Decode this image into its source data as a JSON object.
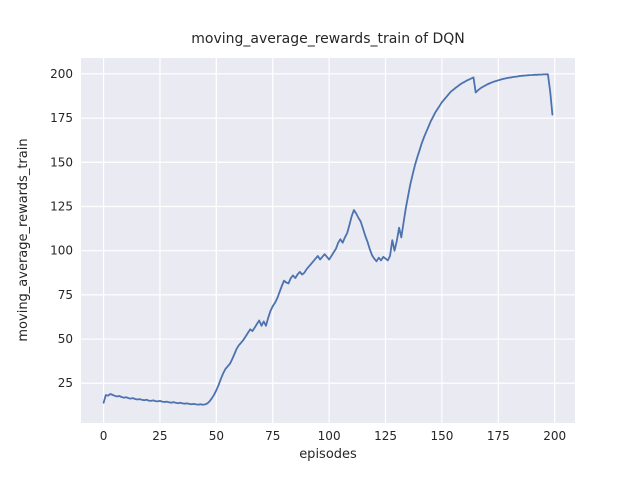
{
  "colors": {
    "figure_bg": "#ffffff",
    "axes_bg": "#eaeaf2",
    "grid": "#ffffff",
    "line": "#4c72b0",
    "text": "#262626"
  },
  "chart_data": {
    "type": "line",
    "title": "moving_average_rewards_train of DQN",
    "xlabel": "episodes",
    "ylabel": "moving_average_rewards_train",
    "x_ticks": [
      0,
      25,
      50,
      75,
      100,
      125,
      150,
      175,
      200
    ],
    "y_ticks": [
      25,
      50,
      75,
      100,
      125,
      150,
      175,
      200
    ],
    "xlim": [
      -10,
      209
    ],
    "ylim": [
      2.5,
      209
    ],
    "grid": true,
    "legend": null,
    "series": [
      {
        "name": "moving_average_rewards_train",
        "color": "#4c72b0",
        "points": [
          [
            0,
            14
          ],
          [
            1,
            18.3
          ],
          [
            2,
            18
          ],
          [
            3,
            18.9
          ],
          [
            4,
            18.4
          ],
          [
            5,
            17.9
          ],
          [
            6,
            17.5
          ],
          [
            7,
            17.8
          ],
          [
            8,
            17.2
          ],
          [
            9,
            16.8
          ],
          [
            10,
            17.1
          ],
          [
            11,
            16.6
          ],
          [
            12,
            16.3
          ],
          [
            13,
            16.6
          ],
          [
            14,
            16.1
          ],
          [
            15,
            15.8
          ],
          [
            16,
            16
          ],
          [
            17,
            15.6
          ],
          [
            18,
            15.4
          ],
          [
            19,
            15.7
          ],
          [
            20,
            15.2
          ],
          [
            21,
            15
          ],
          [
            22,
            15.3
          ],
          [
            23,
            14.9
          ],
          [
            24,
            14.7
          ],
          [
            25,
            15
          ],
          [
            26,
            14.6
          ],
          [
            27,
            14.4
          ],
          [
            28,
            14.6
          ],
          [
            29,
            14.2
          ],
          [
            30,
            14
          ],
          [
            31,
            14.3
          ],
          [
            32,
            13.9
          ],
          [
            33,
            13.7
          ],
          [
            34,
            14
          ],
          [
            35,
            13.6
          ],
          [
            36,
            13.4
          ],
          [
            37,
            13.6
          ],
          [
            38,
            13.3
          ],
          [
            39,
            13.1
          ],
          [
            40,
            13.3
          ],
          [
            41,
            13
          ],
          [
            42,
            12.9
          ],
          [
            43,
            13.1
          ],
          [
            44,
            12.8
          ],
          [
            45,
            13
          ],
          [
            46,
            13.6
          ],
          [
            47,
            14.8
          ],
          [
            48,
            16.5
          ],
          [
            49,
            18.5
          ],
          [
            50,
            21
          ],
          [
            51,
            24
          ],
          [
            52,
            27.5
          ],
          [
            53,
            30.5
          ],
          [
            54,
            33
          ],
          [
            55,
            34.5
          ],
          [
            56,
            36
          ],
          [
            57,
            38.5
          ],
          [
            58,
            41.5
          ],
          [
            59,
            44.5
          ],
          [
            60,
            46.5
          ],
          [
            61,
            48
          ],
          [
            62,
            49.5
          ],
          [
            63,
            51.5
          ],
          [
            64,
            53.5
          ],
          [
            65,
            55.5
          ],
          [
            66,
            54.5
          ],
          [
            67,
            56.5
          ],
          [
            68,
            58.5
          ],
          [
            69,
            60.5
          ],
          [
            70,
            57.5
          ],
          [
            71,
            60
          ],
          [
            72,
            57.5
          ],
          [
            73,
            62
          ],
          [
            74,
            66
          ],
          [
            75,
            68.5
          ],
          [
            76,
            70.5
          ],
          [
            77,
            73
          ],
          [
            78,
            76.5
          ],
          [
            79,
            80
          ],
          [
            80,
            83
          ],
          [
            81,
            82
          ],
          [
            82,
            81.5
          ],
          [
            83,
            84.5
          ],
          [
            84,
            86
          ],
          [
            85,
            84.5
          ],
          [
            86,
            86.5
          ],
          [
            87,
            88
          ],
          [
            88,
            86.5
          ],
          [
            89,
            87.5
          ],
          [
            90,
            89.5
          ],
          [
            91,
            91
          ],
          [
            92,
            92.5
          ],
          [
            93,
            94
          ],
          [
            94,
            95.5
          ],
          [
            95,
            97
          ],
          [
            96,
            95
          ],
          [
            97,
            96.5
          ],
          [
            98,
            98
          ],
          [
            99,
            96.5
          ],
          [
            100,
            95
          ],
          [
            101,
            97
          ],
          [
            102,
            99
          ],
          [
            103,
            101
          ],
          [
            104,
            104.5
          ],
          [
            105,
            106.5
          ],
          [
            106,
            104.5
          ],
          [
            107,
            107.5
          ],
          [
            108,
            110
          ],
          [
            109,
            114.5
          ],
          [
            110,
            119.5
          ],
          [
            111,
            123
          ],
          [
            112,
            121
          ],
          [
            113,
            118.5
          ],
          [
            114,
            116.5
          ],
          [
            115,
            112.5
          ],
          [
            116,
            108.5
          ],
          [
            117,
            105
          ],
          [
            118,
            101
          ],
          [
            119,
            97.5
          ],
          [
            120,
            95.5
          ],
          [
            121,
            94
          ],
          [
            122,
            96
          ],
          [
            123,
            94.5
          ],
          [
            124,
            96.5
          ],
          [
            125,
            95.5
          ],
          [
            126,
            94.5
          ],
          [
            127,
            97
          ],
          [
            128,
            106
          ],
          [
            129,
            100
          ],
          [
            130,
            105.5
          ],
          [
            131,
            113
          ],
          [
            132,
            107.5
          ],
          [
            133,
            116
          ],
          [
            134,
            124
          ],
          [
            135,
            131
          ],
          [
            136,
            137.5
          ],
          [
            137,
            143
          ],
          [
            138,
            148
          ],
          [
            139,
            152.5
          ],
          [
            140,
            156.5
          ],
          [
            141,
            160.5
          ],
          [
            142,
            164
          ],
          [
            143,
            167
          ],
          [
            144,
            170
          ],
          [
            145,
            173
          ],
          [
            146,
            175.5
          ],
          [
            147,
            178
          ],
          [
            148,
            180
          ],
          [
            149,
            182
          ],
          [
            150,
            184
          ],
          [
            151,
            185.5
          ],
          [
            152,
            187
          ],
          [
            153,
            188.5
          ],
          [
            154,
            190
          ],
          [
            155,
            191
          ],
          [
            156,
            192
          ],
          [
            157,
            193
          ],
          [
            158,
            194
          ],
          [
            159,
            194.8
          ],
          [
            160,
            195.5
          ],
          [
            161,
            196.2
          ],
          [
            162,
            196.8
          ],
          [
            163,
            197.4
          ],
          [
            164,
            198
          ],
          [
            165,
            189.5
          ],
          [
            166,
            190.8
          ],
          [
            167,
            191.8
          ],
          [
            168,
            192.6
          ],
          [
            169,
            193.3
          ],
          [
            170,
            194
          ],
          [
            171,
            194.6
          ],
          [
            172,
            195.1
          ],
          [
            173,
            195.6
          ],
          [
            174,
            196
          ],
          [
            175,
            196.4
          ],
          [
            176,
            196.8
          ],
          [
            177,
            197.1
          ],
          [
            178,
            197.4
          ],
          [
            179,
            197.7
          ],
          [
            180,
            197.9
          ],
          [
            181,
            198.1
          ],
          [
            182,
            198.3
          ],
          [
            183,
            198.5
          ],
          [
            184,
            198.7
          ],
          [
            185,
            198.9
          ],
          [
            186,
            199
          ],
          [
            187,
            199.1
          ],
          [
            188,
            199.2
          ],
          [
            189,
            199.3
          ],
          [
            190,
            199.4
          ],
          [
            191,
            199.5
          ],
          [
            192,
            199.5
          ],
          [
            193,
            199.6
          ],
          [
            194,
            199.6
          ],
          [
            195,
            199.7
          ],
          [
            196,
            199.7
          ],
          [
            197,
            199.8
          ],
          [
            198,
            190
          ],
          [
            199,
            177
          ]
        ]
      }
    ]
  }
}
